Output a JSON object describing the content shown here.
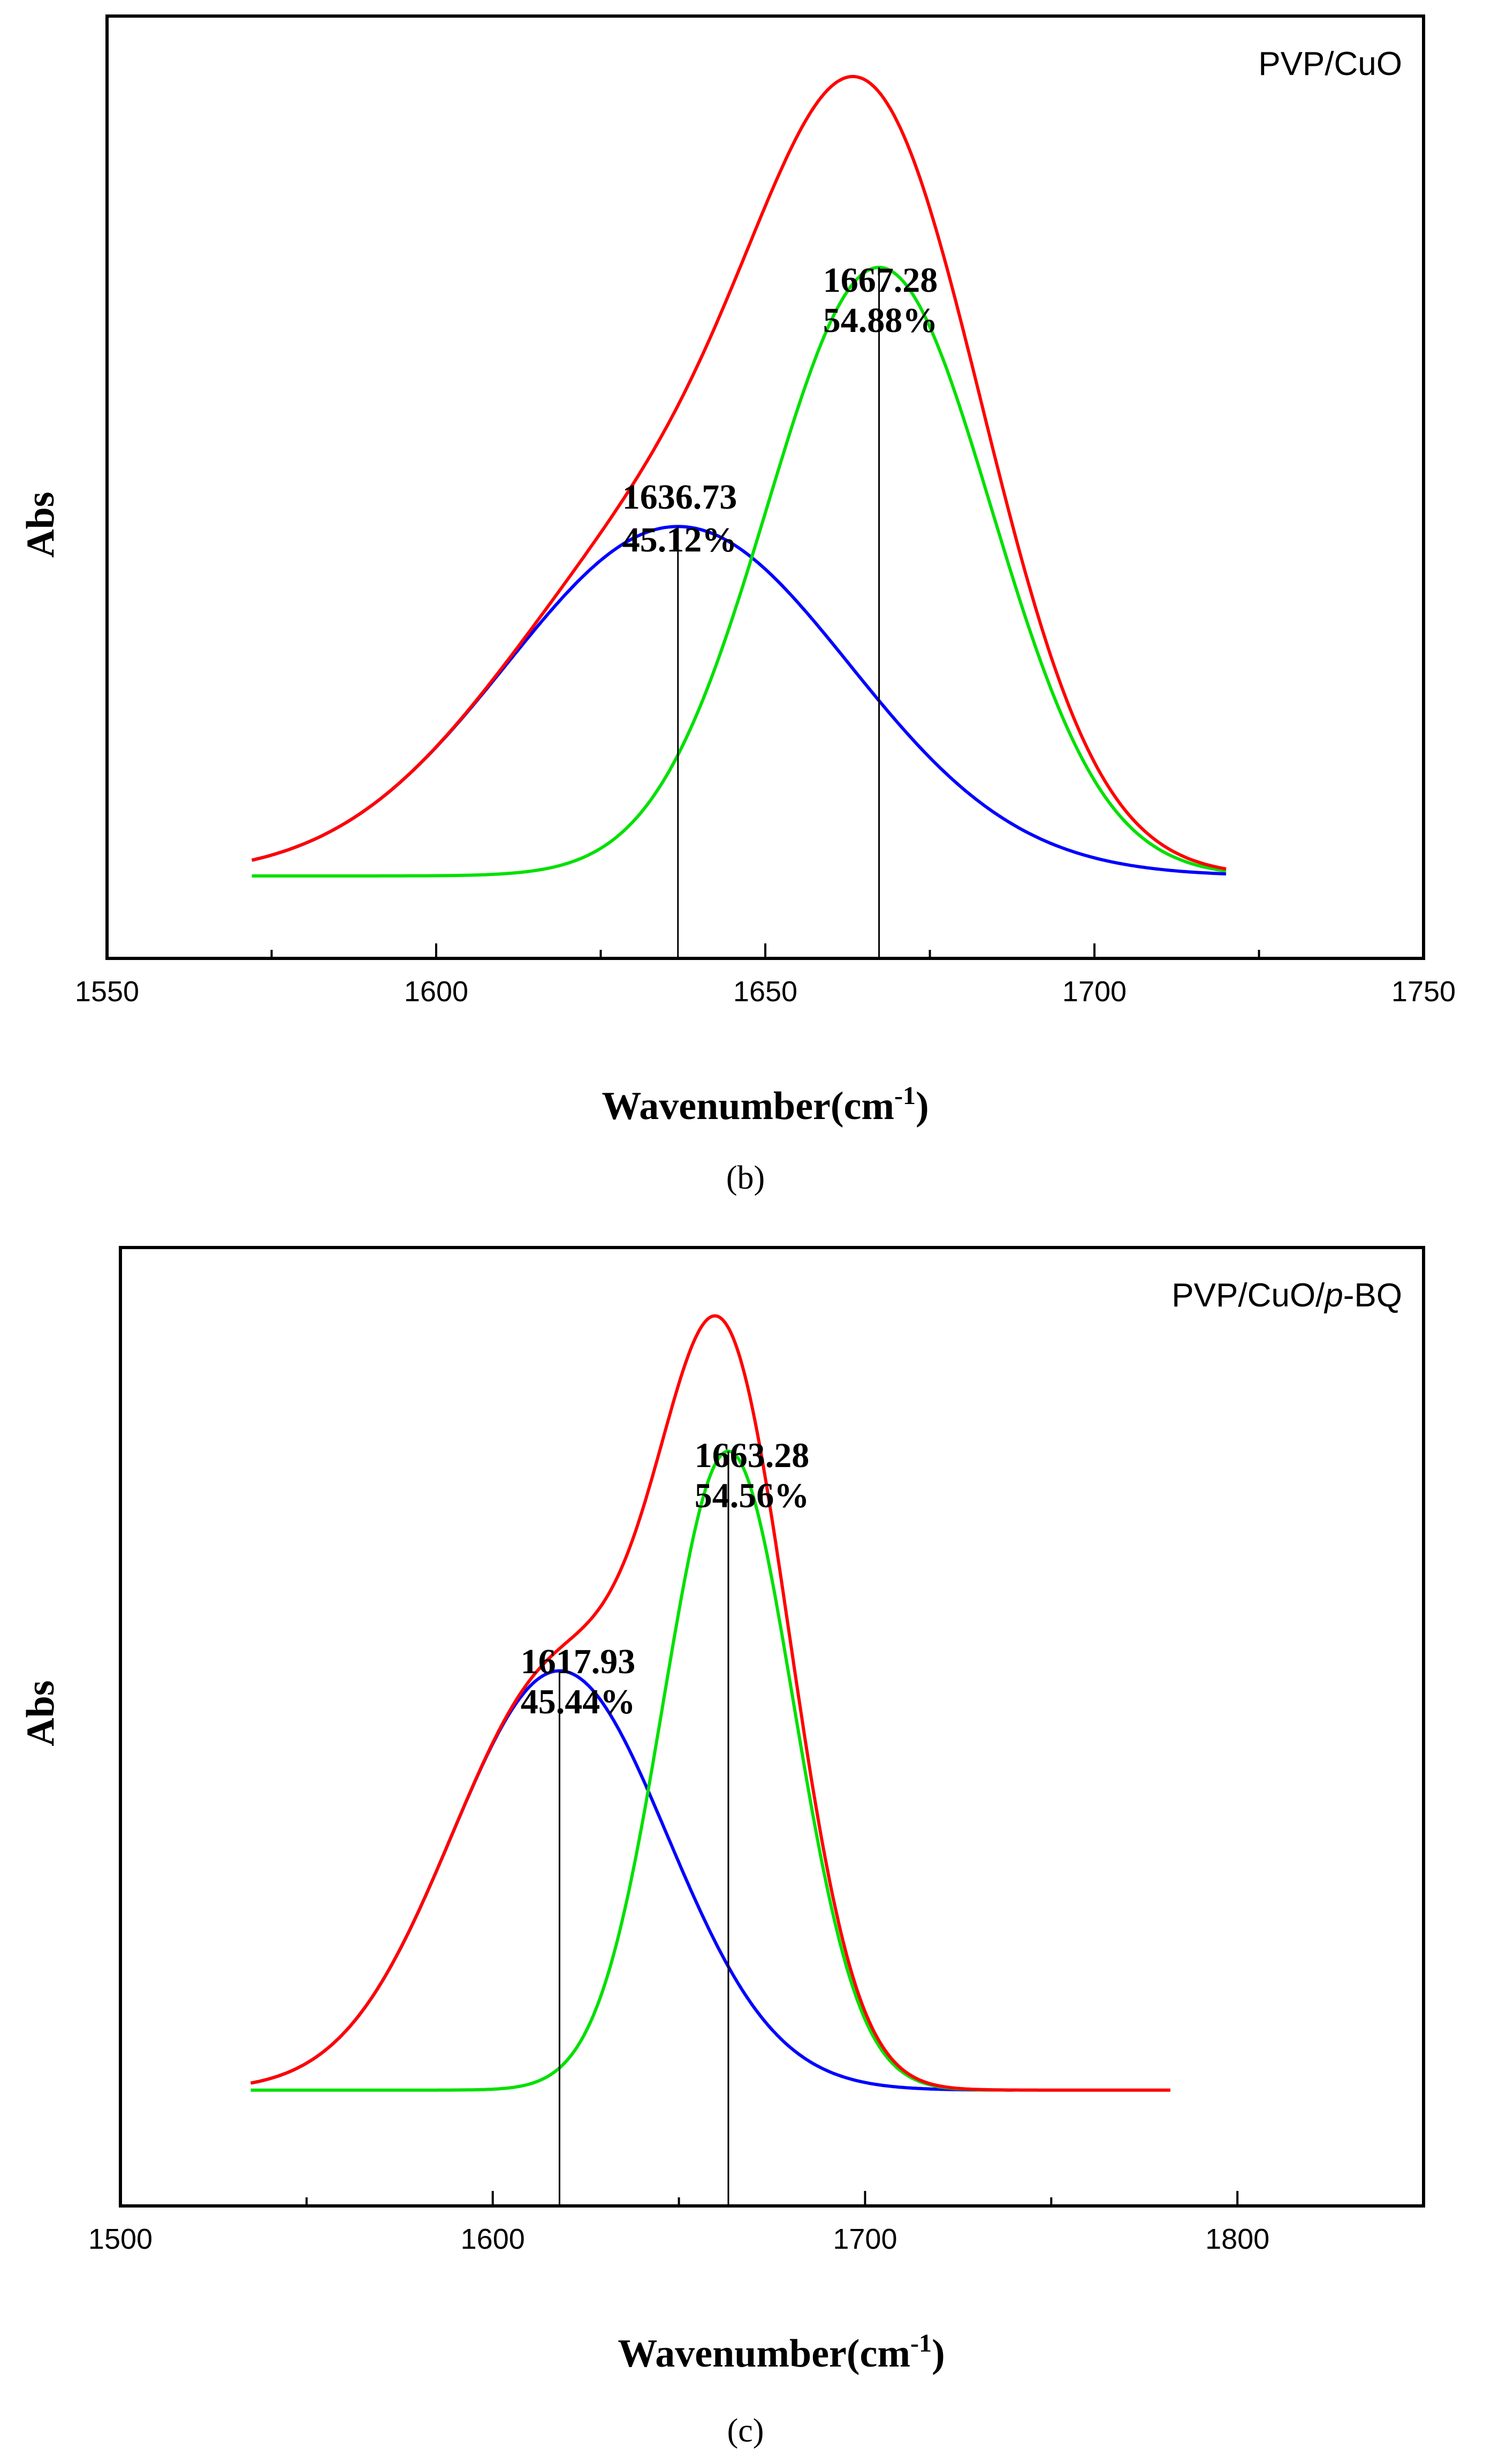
{
  "chart_data": [
    {
      "type": "line",
      "panel": "b",
      "sample_label": "PVP/CuO",
      "xlabel": "Wavenumber(cm",
      "xlabel_sup": "-1",
      "ylabel": "Abs",
      "xlim": [
        1550,
        1750
      ],
      "ylim": [
        0,
        1.2
      ],
      "xticks": [
        1550,
        1600,
        1650,
        1700,
        1750
      ],
      "x_range": [
        1572,
        1720
      ],
      "baseline": 0.105,
      "series": [
        {
          "name": "peak-1",
          "color": "#0000ff",
          "center": 1636.73,
          "height": 0.445,
          "width": 26,
          "percent": "45.12%"
        },
        {
          "name": "peak-2",
          "color": "#00e000",
          "center": 1667.28,
          "height": 0.775,
          "width": 17,
          "percent": "54.88%"
        },
        {
          "name": "fit-sum",
          "color": "#ff0000",
          "sum_of_peaks": true
        }
      ],
      "peak_labels": [
        {
          "position": "1636.73",
          "percent": "45.12%"
        },
        {
          "position": "1667.28",
          "percent": "54.88%"
        }
      ]
    },
    {
      "type": "line",
      "panel": "c",
      "sample_label_prefix": "PVP/CuO/",
      "sample_label_italic": "p",
      "sample_label_suffix": "-BQ",
      "xlabel": "Wavenumber(cm",
      "xlabel_sup": "-1",
      "ylabel": "Abs",
      "xlim": [
        1500,
        1850
      ],
      "ylim": [
        0,
        1.2
      ],
      "xticks": [
        1500,
        1600,
        1700,
        1800
      ],
      "x_range": [
        1535,
        1782
      ],
      "green_end": 1740,
      "blue_end": 1740,
      "baseline": 0.145,
      "series": [
        {
          "name": "peak-1",
          "color": "#0000ff",
          "center": 1617.93,
          "height": 0.525,
          "width": 29,
          "percent": "45.44%"
        },
        {
          "name": "peak-2",
          "color": "#00e000",
          "center": 1663.28,
          "height": 0.8,
          "width": 17.5,
          "percent": "54.56%"
        },
        {
          "name": "fit-sum",
          "color": "#ff0000",
          "sum_of_peaks": true
        }
      ],
      "peak_labels": [
        {
          "position": "1617.93",
          "percent": "45.44%"
        },
        {
          "position": "1663.28",
          "percent": "54.56%"
        }
      ]
    }
  ],
  "panel_labels": [
    "(b)",
    "(c)"
  ]
}
